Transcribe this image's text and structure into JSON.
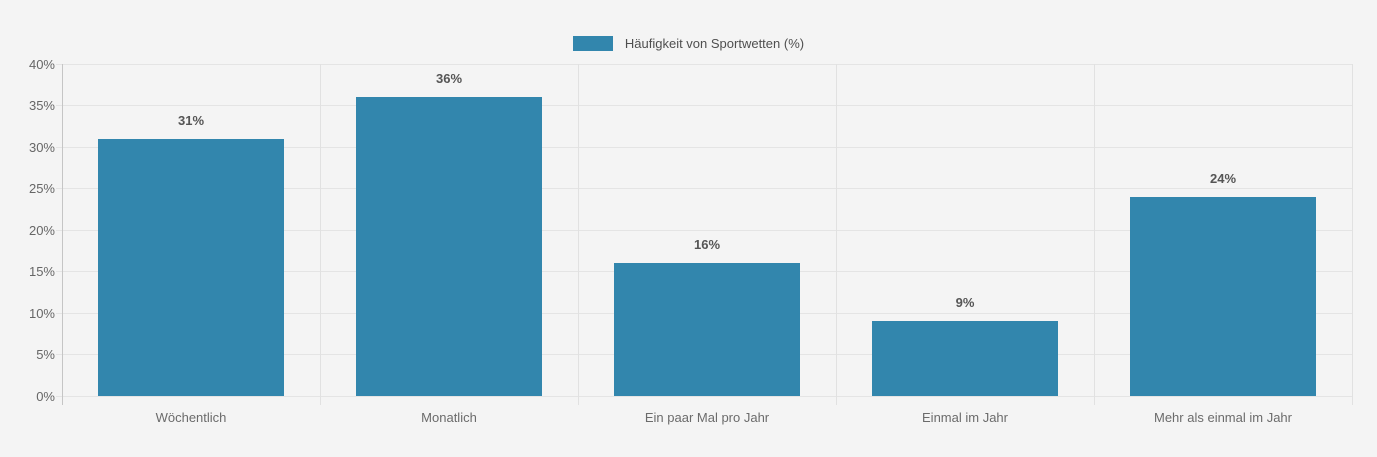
{
  "page": {
    "background": "#f4f4f4"
  },
  "legend": {
    "label": "Häufigkeit von Sportwetten (%)",
    "swatch_color": "#3286ad"
  },
  "chart_data": {
    "type": "bar",
    "title": "Häufigkeit von Sportwetten (%)",
    "categories": [
      "Wöchentlich",
      "Monatlich",
      "Ein paar Mal pro Jahr",
      "Einmal im Jahr",
      "Mehr als einmal im Jahr"
    ],
    "values": [
      31,
      36,
      16,
      9,
      24
    ],
    "data_labels": [
      "31%",
      "36%",
      "16%",
      "9%",
      "24%"
    ],
    "xlabel": "",
    "ylabel": "",
    "ylim": [
      0,
      40
    ],
    "ytick_step": 5,
    "ytick_labels": [
      "0%",
      "5%",
      "10%",
      "15%",
      "20%",
      "25%",
      "30%",
      "35%",
      "40%"
    ],
    "grid": true,
    "legend_position": "top",
    "bar_color": "#3286ad",
    "grid_color": "#e4e4e4",
    "axis_line_color": "#c5c5c5",
    "tick_label_color": "#666666",
    "data_label_color": "#555555"
  }
}
